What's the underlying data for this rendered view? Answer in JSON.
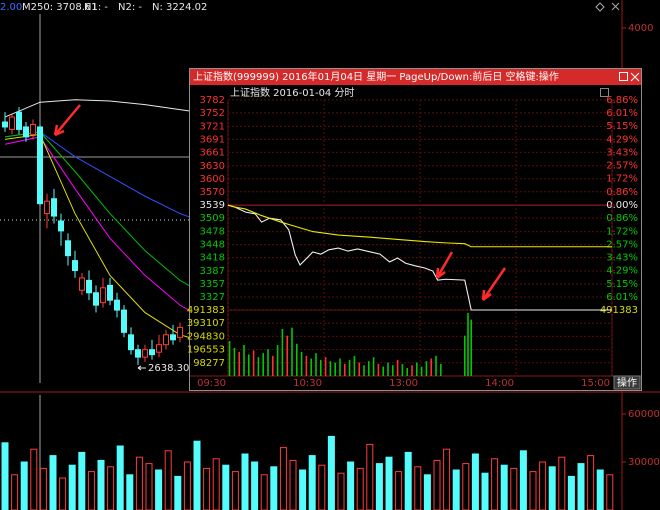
{
  "background_chart": {
    "prefix": "2.00",
    "indicators": [
      "M250: 3708.61",
      "N1: -",
      "N2: -",
      "N: 3224.02"
    ],
    "up_color": "#ff3c3c",
    "down_color": "#54fcfc",
    "price_axis": {
      "ylim": [
        2529,
        4113
      ],
      "yticks": [
        4000
      ]
    },
    "low_label": "2638.30",
    "candles": {
      "open": [
        3620,
        3590,
        3660,
        3600,
        3570,
        3600,
        3250,
        3310,
        3220,
        3140,
        3060,
        2940,
        2980,
        2930,
        2890,
        2960,
        2900,
        2860,
        2760,
        2700,
        2670,
        2700,
        2690,
        2720,
        2760,
        2750
      ],
      "close": [
        3600,
        3640,
        3590,
        3560,
        3610,
        3290,
        3300,
        3240,
        3180,
        3080,
        3020,
        2990,
        2930,
        2880,
        2950,
        2900,
        2860,
        2770,
        2700,
        2670,
        2700,
        2680,
        2720,
        2760,
        2740,
        2790
      ],
      "high": [
        3660,
        3650,
        3680,
        3620,
        3630,
        3610,
        3330,
        3350,
        3250,
        3170,
        3100,
        3010,
        3020,
        2960,
        2990,
        2990,
        2930,
        2880,
        2790,
        2720,
        2720,
        2740,
        2760,
        2780,
        2800,
        2810
      ],
      "low": [
        3580,
        3570,
        3570,
        3540,
        3550,
        3280,
        3190,
        3210,
        3120,
        3040,
        2990,
        2920,
        2900,
        2850,
        2870,
        2880,
        2830,
        2750,
        2680,
        2638.3,
        2650,
        2660,
        2670,
        2700,
        2720,
        2730
      ]
    },
    "ma_lines": [
      {
        "color": "#e8e8e8",
        "x": [
          0,
          5,
          10,
          15,
          20,
          25,
          30
        ],
        "values": [
          3640,
          3700,
          3710,
          3705,
          3690,
          3670,
          3650
        ]
      },
      {
        "color": "#3050ff",
        "x": [
          0,
          5,
          10,
          15,
          20,
          25,
          30
        ],
        "values": [
          3560,
          3580,
          3480,
          3400,
          3320,
          3250,
          3200
        ]
      },
      {
        "color": "#00c000",
        "x": [
          0,
          5,
          10,
          15,
          20,
          25,
          30
        ],
        "values": [
          3560,
          3580,
          3420,
          3250,
          3100,
          2980,
          2900
        ]
      },
      {
        "color": "#ff00ff",
        "x": [
          0,
          5,
          10,
          15,
          20,
          25,
          30
        ],
        "values": [
          3530,
          3560,
          3350,
          3150,
          3000,
          2880,
          2800
        ]
      },
      {
        "color": "#e0e000",
        "x": [
          0,
          5,
          10,
          15,
          20,
          25,
          30
        ],
        "values": [
          3550,
          3570,
          3250,
          3000,
          2850,
          2760,
          2720
        ]
      }
    ],
    "volume_axis": {
      "ylim": [
        0,
        71250
      ],
      "yticks": [
        60000,
        30000
      ]
    },
    "volume": {
      "values": [
        42000,
        22000,
        30000,
        38000,
        26000,
        34000,
        20000,
        28000,
        36000,
        24000,
        31000,
        27000,
        40000,
        22000,
        33000,
        29000,
        25000,
        37000,
        21000,
        30000,
        43000,
        26000,
        32000,
        28000,
        24000,
        35000,
        30000,
        22000,
        27000,
        39000,
        31000,
        25000,
        34000,
        28000,
        46000,
        23000,
        30000,
        26000,
        41000,
        29000,
        33000,
        24000,
        36000,
        27000,
        22000,
        31000,
        38000,
        25000,
        29000,
        35000,
        23000,
        32000,
        28000,
        26000,
        37000,
        24000,
        30000,
        27000,
        33000,
        21000,
        29000,
        34000,
        25000,
        22000
      ],
      "up": [
        0,
        1,
        0,
        1,
        1,
        0,
        1,
        0,
        0,
        1,
        0,
        1,
        0,
        0,
        1,
        1,
        0,
        1,
        0,
        1,
        0,
        1,
        1,
        0,
        1,
        0,
        0,
        1,
        0,
        1,
        1,
        0,
        0,
        1,
        0,
        1,
        0,
        1,
        1,
        0,
        0,
        1,
        0,
        1,
        0,
        1,
        1,
        0,
        1,
        0,
        0,
        1,
        0,
        1,
        0,
        1,
        1,
        0,
        1,
        0,
        0,
        1,
        0,
        1
      ]
    }
  },
  "popup": {
    "title": "上证指数(999999) 2016年01月04日 星期一 PageUp/Down:前后日 空格键:操作",
    "subtitle": "上证指数  2016-01-04 分时",
    "button": "操作",
    "chart": {
      "type": "line",
      "xlim": [
        0,
        240
      ],
      "xticks": [
        {
          "value": 0,
          "label": "09:30"
        },
        {
          "value": 60,
          "label": "10:30"
        },
        {
          "value": 120,
          "label": "13:00"
        },
        {
          "value": 180,
          "label": "14:00"
        },
        {
          "value": 240,
          "label": "15:00"
        }
      ],
      "ylim": [
        3297,
        3798
      ],
      "yticks": [
        3782,
        3752,
        3721,
        3691,
        3661,
        3630,
        3600,
        3570,
        3539,
        3509,
        3478,
        3448,
        3418,
        3387,
        3357,
        3327
      ],
      "y2lim": [
        -6.86,
        7.32
      ],
      "y2ticks": [
        {
          "value": 6.86,
          "label": "6.86%"
        },
        {
          "value": 6.01,
          "label": "6.01%"
        },
        {
          "value": 5.15,
          "label": "5.15%"
        },
        {
          "value": 4.29,
          "label": "4.29%"
        },
        {
          "value": 3.43,
          "label": "3.43%"
        },
        {
          "value": 2.57,
          "label": "2.57%"
        },
        {
          "value": 1.72,
          "label": "1.72%"
        },
        {
          "value": 0.86,
          "label": "0.86%"
        },
        {
          "value": 0,
          "label": "0.00%"
        },
        {
          "value": -0.86,
          "label": "0.86%"
        },
        {
          "value": -1.72,
          "label": "1.72%"
        },
        {
          "value": -2.57,
          "label": "2.57%"
        },
        {
          "value": -3.43,
          "label": "3.43%"
        },
        {
          "value": -4.29,
          "label": "4.29%"
        },
        {
          "value": -5.15,
          "label": "5.15%"
        },
        {
          "value": -6.01,
          "label": "6.01%"
        }
      ],
      "up_color": "#ff3030",
      "down_color": "#00c800",
      "flat_color": "#e8e8e8",
      "series": [
        {
          "color": "#f0f0f0",
          "x": [
            0,
            4,
            11,
            17,
            21,
            26,
            33,
            38,
            42,
            45,
            48,
            53,
            58,
            63,
            69,
            75,
            81,
            89,
            95,
            101,
            106,
            111,
            117,
            123,
            128,
            131,
            136,
            148,
            152,
            240
          ],
          "values": [
            3539,
            3535,
            3523,
            3519,
            3500,
            3509,
            3505,
            3482,
            3424,
            3401,
            3412,
            3431,
            3426,
            3436,
            3440,
            3433,
            3438,
            3431,
            3426,
            3408,
            3417,
            3405,
            3399,
            3394,
            3387,
            3366,
            3368,
            3366,
            3297,
            3297
          ]
        },
        {
          "color": "#e8e800",
          "x": [
            0,
            4,
            11,
            21,
            33,
            42,
            53,
            69,
            89,
            106,
            123,
            136,
            148,
            152,
            240
          ],
          "values": [
            3539,
            3535,
            3530,
            3515,
            3500,
            3490,
            3478,
            3470,
            3465,
            3460,
            3455,
            3452,
            3450,
            3443,
            3443
          ]
        }
      ],
      "vlim": [
        0,
        491383
      ],
      "vticks": [
        491383,
        393107,
        294830,
        196553,
        98277
      ],
      "volume": {
        "x": [
          1,
          4,
          7,
          10,
          13,
          16,
          19,
          22,
          25,
          28,
          31,
          34,
          37,
          40,
          43,
          46,
          49,
          52,
          55,
          58,
          61,
          64,
          67,
          70,
          73,
          76,
          79,
          82,
          85,
          88,
          91,
          94,
          97,
          100,
          103,
          106,
          109,
          112,
          115,
          118,
          121,
          124,
          127,
          130,
          133,
          148,
          150,
          152
        ],
        "values": [
          260000,
          210000,
          180000,
          230000,
          160000,
          190000,
          140000,
          170000,
          200000,
          150000,
          230000,
          350000,
          300000,
          360000,
          240000,
          180000,
          150000,
          130000,
          170000,
          120000,
          140000,
          110000,
          100000,
          130000,
          90000,
          120000,
          150000,
          100000,
          80000,
          110000,
          140000,
          90000,
          70000,
          100000,
          80000,
          120000,
          90000,
          60000,
          80000,
          100000,
          70000,
          110000,
          130000,
          150000,
          90000,
          300000,
          470000,
          420000
        ],
        "up": [
          0,
          0,
          1,
          0,
          0,
          1,
          0,
          0,
          0,
          1,
          0,
          0,
          1,
          0,
          0,
          0,
          1,
          0,
          0,
          0,
          1,
          0,
          0,
          0,
          1,
          0,
          0,
          1,
          0,
          0,
          0,
          1,
          0,
          0,
          0,
          1,
          0,
          0,
          1,
          0,
          0,
          0,
          1,
          0,
          0,
          0,
          0,
          0
        ]
      }
    }
  }
}
